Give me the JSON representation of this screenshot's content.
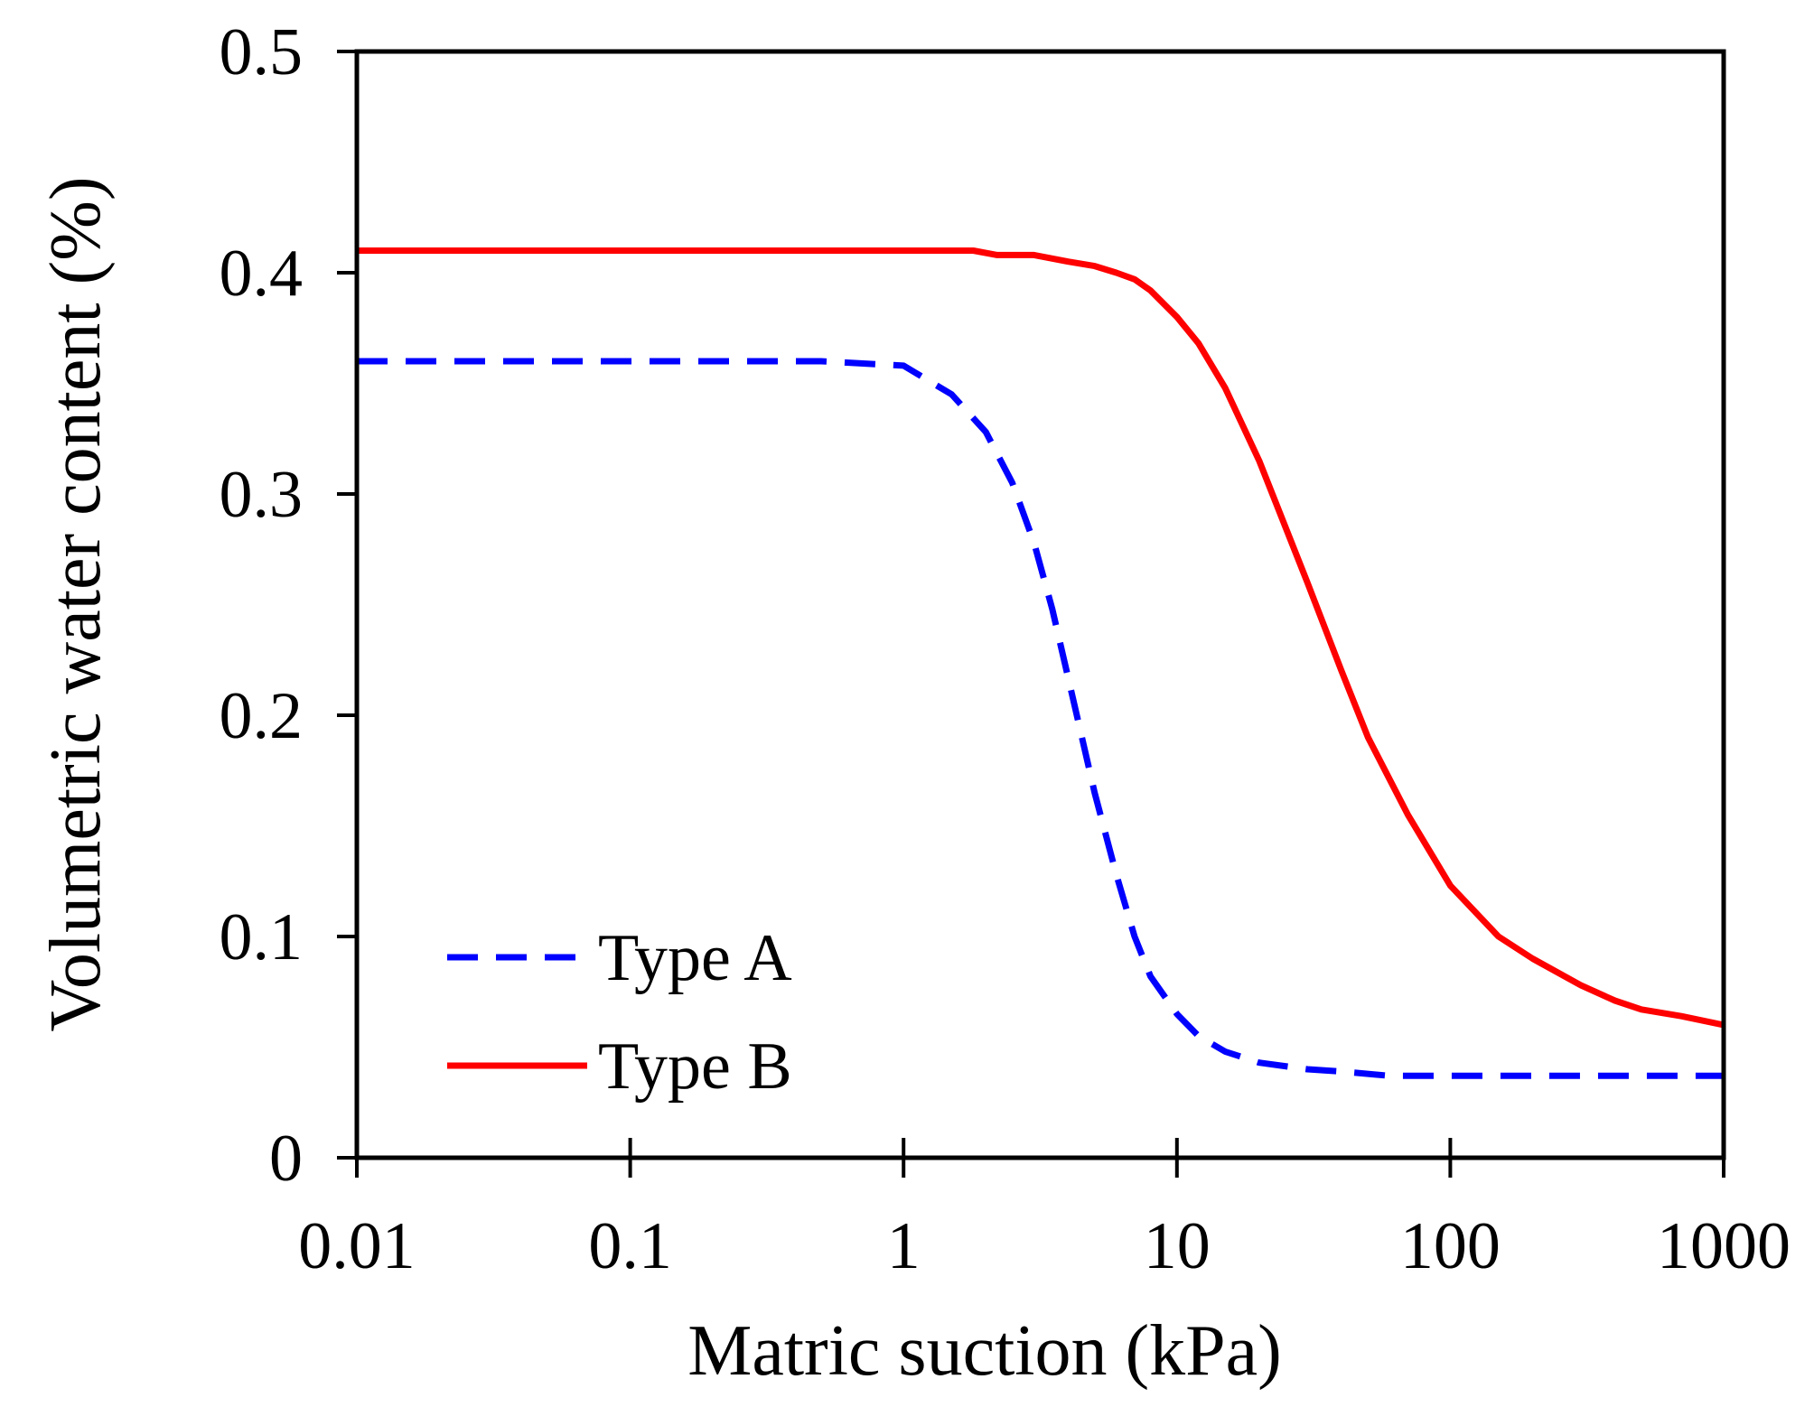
{
  "chart_data": {
    "type": "line",
    "title": "",
    "xlabel": "Matric suction (kPa)",
    "ylabel": "Volumetric water content  (%)",
    "xscale": "log",
    "xlim": [
      0.01,
      1000
    ],
    "ylim": [
      0,
      0.5
    ],
    "xticks": [
      0.01,
      0.1,
      1,
      10,
      100,
      1000
    ],
    "xtick_labels": [
      "0.01",
      "0.1",
      "1",
      "10",
      "100",
      "1000"
    ],
    "yticks": [
      0,
      0.1,
      0.2,
      0.3,
      0.4,
      0.5
    ],
    "ytick_labels": [
      "0",
      "0.1",
      "0.2",
      "0.3",
      "0.4",
      "0.5"
    ],
    "grid": false,
    "legend": "bottom-left",
    "series": [
      {
        "name": "Type A",
        "style": "dashed",
        "color": "#0000ff",
        "x": [
          0.01,
          0.1,
          0.5,
          1,
          1.5,
          2,
          2.5,
          3,
          3.5,
          4,
          5,
          6,
          7,
          8,
          10,
          12,
          15,
          20,
          30,
          40,
          60,
          100,
          200,
          500,
          1000
        ],
        "y": [
          0.36,
          0.36,
          0.36,
          0.358,
          0.345,
          0.328,
          0.305,
          0.278,
          0.248,
          0.217,
          0.165,
          0.128,
          0.1,
          0.082,
          0.065,
          0.055,
          0.048,
          0.043,
          0.04,
          0.039,
          0.037,
          0.037,
          0.037,
          0.037,
          0.037
        ]
      },
      {
        "name": "Type B",
        "style": "solid",
        "color": "#ff0000",
        "x": [
          0.01,
          0.1,
          1,
          1.8,
          2.2,
          3,
          4,
          5,
          6,
          7,
          8,
          10,
          12,
          15,
          20,
          30,
          40,
          50,
          70,
          100,
          150,
          200,
          300,
          400,
          500,
          700,
          1000
        ],
        "y": [
          0.41,
          0.41,
          0.41,
          0.41,
          0.408,
          0.408,
          0.405,
          0.403,
          0.4,
          0.397,
          0.392,
          0.38,
          0.368,
          0.348,
          0.315,
          0.26,
          0.22,
          0.19,
          0.155,
          0.123,
          0.1,
          0.09,
          0.078,
          0.071,
          0.067,
          0.064,
          0.06
        ]
      }
    ]
  }
}
